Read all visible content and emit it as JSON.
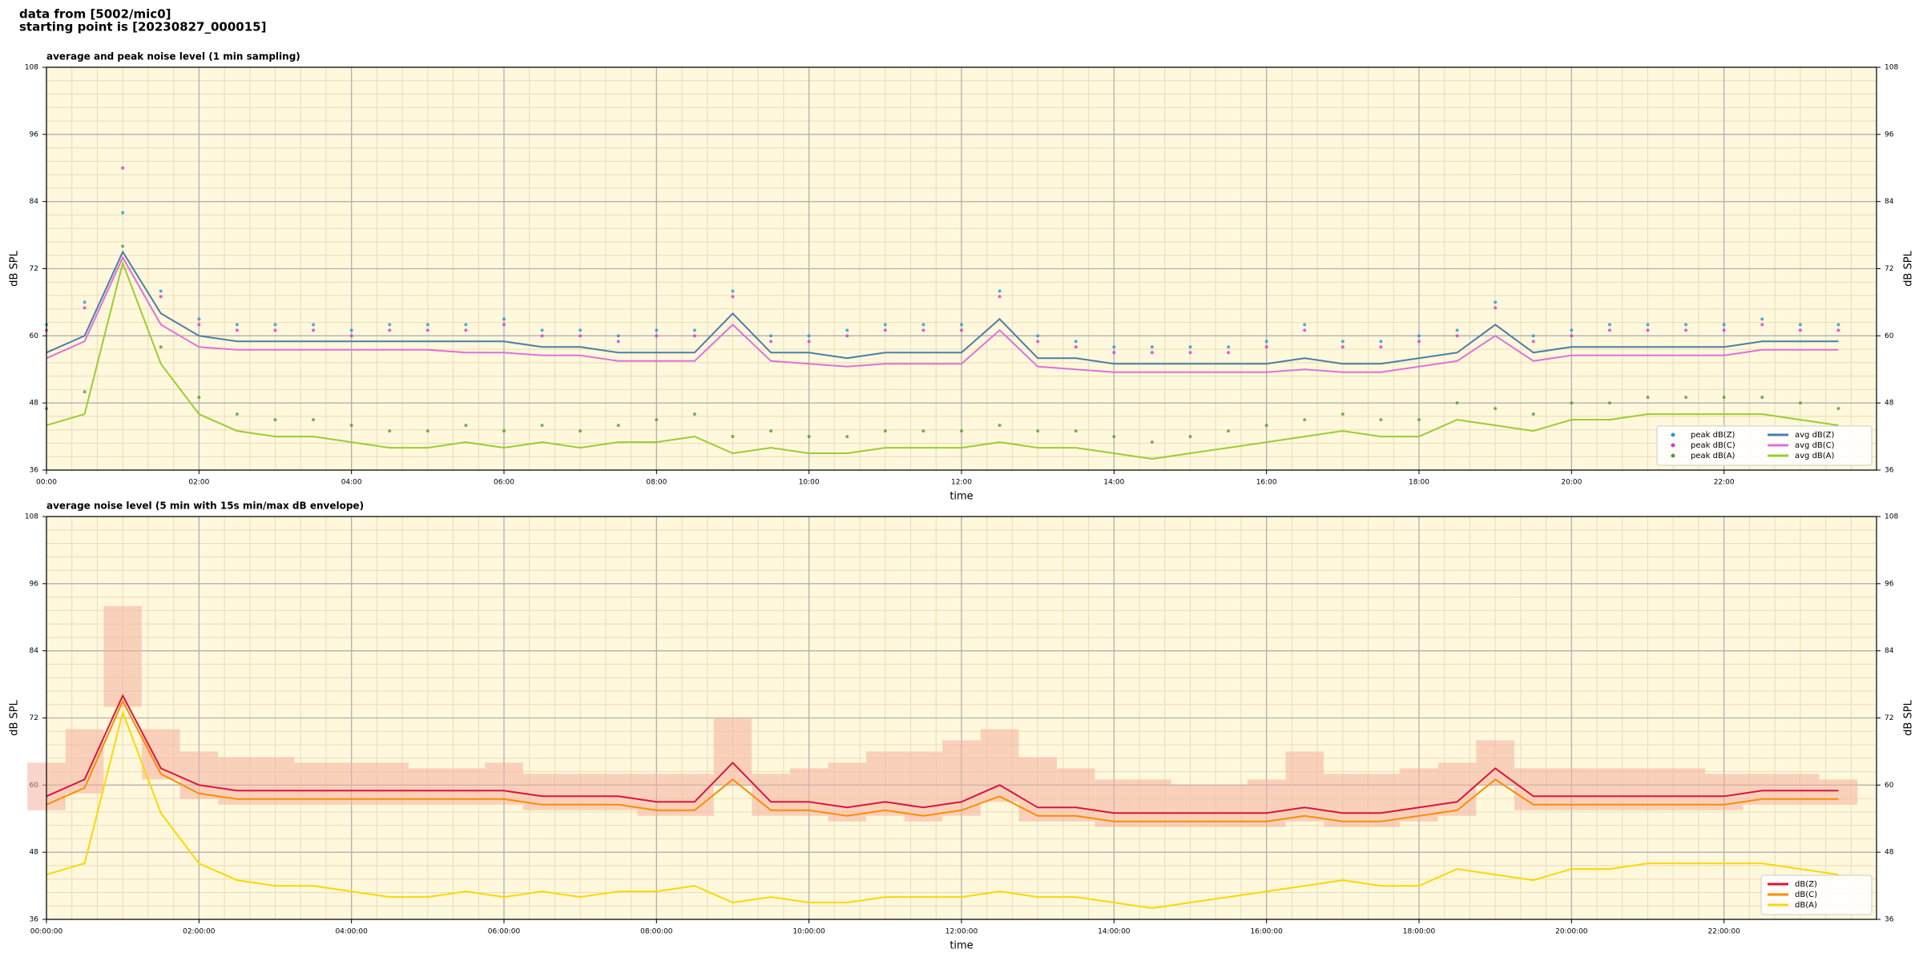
{
  "heading": [
    "data from [5002/mic0]",
    "starting point is [20230827_000015]"
  ],
  "chart_data": [
    {
      "type": "line",
      "title": "average and peak noise level (1 min sampling)",
      "xlabel": "time",
      "ylabel": "dB SPL",
      "xlim": [
        "00:00",
        "24:00"
      ],
      "xticks": [
        "00:00",
        "02:00",
        "04:00",
        "06:00",
        "08:00",
        "10:00",
        "12:00",
        "14:00",
        "16:00",
        "18:00",
        "20:00",
        "22:00"
      ],
      "ylim": [
        36,
        108
      ],
      "yticks": [
        36,
        48,
        60,
        72,
        84,
        96,
        108
      ],
      "grid": true,
      "background": "#fff8dc",
      "legend": "lower right",
      "legend_columns": 2,
      "x": [
        "00:00",
        "00:30",
        "01:00",
        "01:30",
        "02:00",
        "02:30",
        "03:00",
        "03:30",
        "04:00",
        "04:30",
        "05:00",
        "05:30",
        "06:00",
        "06:30",
        "07:00",
        "07:30",
        "08:00",
        "08:30",
        "09:00",
        "09:30",
        "10:00",
        "10:30",
        "11:00",
        "11:30",
        "12:00",
        "12:30",
        "13:00",
        "13:30",
        "14:00",
        "14:30",
        "15:00",
        "15:30",
        "16:00",
        "16:30",
        "17:00",
        "17:30",
        "18:00",
        "18:30",
        "19:00",
        "19:30",
        "20:00",
        "20:30",
        "21:00",
        "21:30",
        "22:00",
        "22:30",
        "23:00",
        "23:30"
      ],
      "series": [
        {
          "name": "peak dB(Z)",
          "type": "scatter",
          "color": "#1e9bd7",
          "values": [
            62,
            66,
            82,
            68,
            63,
            62,
            62,
            62,
            61,
            62,
            62,
            62,
            63,
            61,
            61,
            60,
            61,
            61,
            68,
            60,
            60,
            61,
            62,
            62,
            62,
            68,
            60,
            59,
            58,
            58,
            58,
            58,
            59,
            62,
            59,
            59,
            60,
            61,
            66,
            60,
            61,
            62,
            62,
            62,
            62,
            63,
            62,
            62
          ]
        },
        {
          "name": "peak dB(C)",
          "type": "scatter",
          "color": "#d838d0",
          "values": [
            61,
            65,
            90,
            67,
            62,
            61,
            61,
            61,
            60,
            61,
            61,
            61,
            62,
            60,
            60,
            59,
            60,
            60,
            67,
            59,
            59,
            60,
            61,
            61,
            61,
            67,
            59,
            58,
            57,
            57,
            57,
            57,
            58,
            61,
            58,
            58,
            59,
            60,
            65,
            59,
            60,
            61,
            61,
            61,
            61,
            62,
            61,
            61
          ]
        },
        {
          "name": "peak dB(A)",
          "type": "scatter",
          "color": "#5a9a3a",
          "values": [
            47,
            50,
            76,
            58,
            49,
            46,
            45,
            45,
            44,
            43,
            43,
            44,
            43,
            44,
            43,
            44,
            45,
            46,
            42,
            43,
            42,
            42,
            43,
            43,
            43,
            44,
            43,
            43,
            42,
            41,
            42,
            43,
            44,
            45,
            46,
            45,
            45,
            48,
            47,
            46,
            48,
            48,
            49,
            49,
            49,
            49,
            48,
            47
          ]
        },
        {
          "name": "avg dB(Z)",
          "type": "line",
          "color": "#4a7ea8",
          "values": [
            57,
            60,
            75,
            64,
            60,
            59,
            59,
            59,
            59,
            59,
            59,
            59,
            59,
            58,
            58,
            57,
            57,
            57,
            64,
            57,
            57,
            56,
            57,
            57,
            57,
            63,
            56,
            56,
            55,
            55,
            55,
            55,
            55,
            56,
            55,
            55,
            56,
            57,
            62,
            57,
            58,
            58,
            58,
            58,
            58,
            59,
            59,
            59
          ]
        },
        {
          "name": "avg dB(C)",
          "type": "line",
          "color": "#e070d8",
          "values": [
            56,
            59,
            74,
            62,
            58,
            57.5,
            57.5,
            57.5,
            57.5,
            57.5,
            57.5,
            57,
            57,
            56.5,
            56.5,
            55.5,
            55.5,
            55.5,
            62,
            55.5,
            55,
            54.5,
            55,
            55,
            55,
            61,
            54.5,
            54,
            53.5,
            53.5,
            53.5,
            53.5,
            53.5,
            54,
            53.5,
            53.5,
            54.5,
            55.5,
            60,
            55.5,
            56.5,
            56.5,
            56.5,
            56.5,
            56.5,
            57.5,
            57.5,
            57.5
          ]
        },
        {
          "name": "avg dB(A)",
          "type": "line",
          "color": "#9acd32",
          "values": [
            44,
            46,
            73,
            55,
            46,
            43,
            42,
            42,
            41,
            40,
            40,
            41,
            40,
            41,
            40,
            41,
            41,
            42,
            39,
            40,
            39,
            39,
            40,
            40,
            40,
            41,
            40,
            40,
            39,
            38,
            39,
            40,
            41,
            42,
            43,
            42,
            42,
            45,
            44,
            43,
            45,
            45,
            46,
            46,
            46,
            46,
            45,
            44
          ]
        }
      ]
    },
    {
      "type": "line",
      "title": "average noise level (5 min with 15s min/max dB envelope)",
      "xlabel": "time",
      "ylabel": "dB SPL",
      "xlim": [
        "00:00:00",
        "24:00:00"
      ],
      "xticks": [
        "00:00:00",
        "02:00:00",
        "04:00:00",
        "06:00:00",
        "08:00:00",
        "10:00:00",
        "12:00:00",
        "14:00:00",
        "16:00:00",
        "18:00:00",
        "20:00:00",
        "22:00:00"
      ],
      "ylim": [
        36,
        108
      ],
      "yticks": [
        36,
        48,
        60,
        72,
        84,
        96,
        108
      ],
      "grid": true,
      "background": "#fff8dc",
      "legend": "lower right",
      "legend_columns": 1,
      "envelope_color": "#f4b0a0",
      "x": [
        "00:00:00",
        "00:30:00",
        "01:00:00",
        "01:30:00",
        "02:00:00",
        "02:30:00",
        "03:00:00",
        "03:30:00",
        "04:00:00",
        "04:30:00",
        "05:00:00",
        "05:30:00",
        "06:00:00",
        "06:30:00",
        "07:00:00",
        "07:30:00",
        "08:00:00",
        "08:30:00",
        "09:00:00",
        "09:30:00",
        "10:00:00",
        "10:30:00",
        "11:00:00",
        "11:30:00",
        "12:00:00",
        "12:30:00",
        "13:00:00",
        "13:30:00",
        "14:00:00",
        "14:30:00",
        "15:00:00",
        "15:30:00",
        "16:00:00",
        "16:30:00",
        "17:00:00",
        "17:30:00",
        "18:00:00",
        "18:30:00",
        "19:00:00",
        "19:30:00",
        "20:00:00",
        "20:30:00",
        "21:00:00",
        "21:30:00",
        "22:00:00",
        "22:30:00",
        "23:00:00",
        "23:30:00"
      ],
      "series": [
        {
          "name": "dB(Z)",
          "type": "line",
          "color": "#dc143c",
          "values": [
            58,
            61,
            76,
            63,
            60,
            59,
            59,
            59,
            59,
            59,
            59,
            59,
            59,
            58,
            58,
            58,
            57,
            57,
            64,
            57,
            57,
            56,
            57,
            56,
            57,
            60,
            56,
            56,
            55,
            55,
            55,
            55,
            55,
            56,
            55,
            55,
            56,
            57,
            63,
            58,
            58,
            58,
            58,
            58,
            58,
            59,
            59,
            59
          ],
          "max_values": [
            64,
            70,
            92,
            70,
            66,
            65,
            65,
            64,
            64,
            64,
            63,
            63,
            64,
            62,
            62,
            62,
            62,
            62,
            72,
            62,
            63,
            64,
            66,
            66,
            68,
            70,
            65,
            63,
            61,
            61,
            60,
            60,
            61,
            66,
            62,
            62,
            63,
            64,
            68,
            63,
            63,
            63,
            63,
            63,
            62,
            62,
            62,
            61
          ],
          "min_values": [
            55.5,
            58.5,
            74,
            61,
            57.5,
            56.5,
            56.5,
            56.5,
            56.5,
            56.5,
            56.5,
            56.5,
            56.5,
            55.5,
            55.5,
            55.5,
            54.5,
            54.5,
            60,
            54.5,
            54.5,
            53.5,
            54.5,
            53.5,
            54.5,
            57,
            53.5,
            53.5,
            52.5,
            52.5,
            52.5,
            52.5,
            52.5,
            53.5,
            52.5,
            52.5,
            53.5,
            54.5,
            60,
            55.5,
            55.5,
            55.5,
            55.5,
            55.5,
            55.5,
            56.5,
            56.5,
            56.5
          ]
        },
        {
          "name": "dB(C)",
          "type": "line",
          "color": "#ff8c00",
          "values": [
            56.5,
            59.5,
            75,
            62,
            58.5,
            57.5,
            57.5,
            57.5,
            57.5,
            57.5,
            57.5,
            57.5,
            57.5,
            56.5,
            56.5,
            56.5,
            55.5,
            55.5,
            61,
            55.5,
            55.5,
            54.5,
            55.5,
            54.5,
            55.5,
            58,
            54.5,
            54.5,
            53.5,
            53.5,
            53.5,
            53.5,
            53.5,
            54.5,
            53.5,
            53.5,
            54.5,
            55.5,
            61,
            56.5,
            56.5,
            56.5,
            56.5,
            56.5,
            56.5,
            57.5,
            57.5,
            57.5
          ]
        },
        {
          "name": "dB(A)",
          "type": "line",
          "color": "#ffd700",
          "values": [
            44,
            46,
            73,
            55,
            46,
            43,
            42,
            42,
            41,
            40,
            40,
            41,
            40,
            41,
            40,
            41,
            41,
            42,
            39,
            40,
            39,
            39,
            40,
            40,
            40,
            41,
            40,
            40,
            39,
            38,
            39,
            40,
            41,
            42,
            43,
            42,
            42,
            45,
            44,
            43,
            45,
            45,
            46,
            46,
            46,
            46,
            45,
            44
          ]
        }
      ]
    }
  ]
}
